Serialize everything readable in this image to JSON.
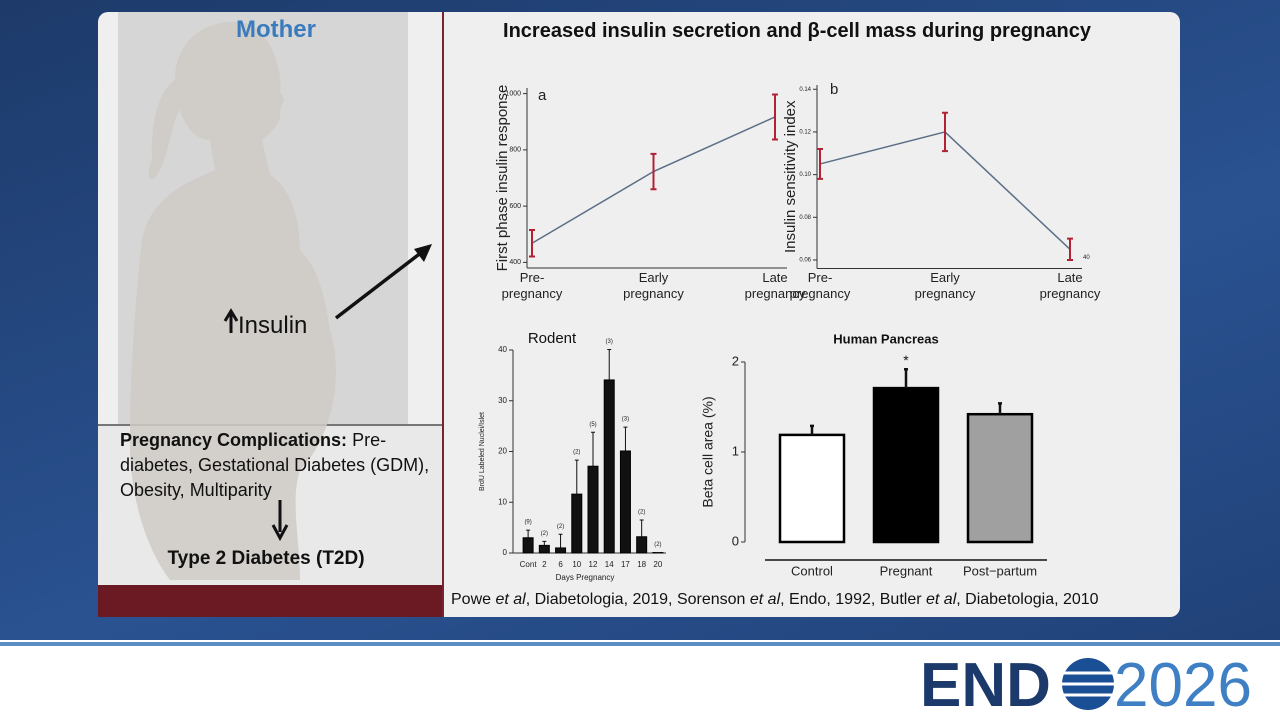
{
  "header": {
    "left_title": "Mother",
    "title": "Increased insulin secretion and β-cell mass during pregnancy"
  },
  "left_panel": {
    "insulin_label": "Insulin",
    "complications_heading": "Pregnancy Complications:",
    "complications_text": "Pre-diabetes, Gestational Diabetes (GDM), Obesity, Multiparity",
    "outcome": "Type 2 Diabetes (T2D)"
  },
  "citation": [
    "Powe ",
    "et al",
    ", Diabetologia, 2019, Sorenson ",
    "et al",
    ", Endo, 1992, Butler ",
    "et al",
    ", Diabetologia, 2010"
  ],
  "logo": {
    "mark": "END",
    "year": "2026"
  },
  "chart_data": [
    {
      "type": "line",
      "label": "a",
      "y_label": "First phase insulin response",
      "categories": [
        "Pre-\npregnancy",
        "Early\npregnancy",
        "Late\npregnancy"
      ],
      "series": [
        {
          "color": "#5a6f86",
          "error_color": "#b22234",
          "values": [
            468,
            723,
            917
          ],
          "errors": [
            47,
            63,
            80
          ]
        }
      ],
      "ylim": [
        380,
        1020
      ],
      "yticks": [
        400,
        600,
        800,
        1000
      ]
    },
    {
      "type": "line",
      "label": "b",
      "y_label": "Insulin sensitivity index",
      "categories": [
        "Pre-\npregnancy",
        "Early\npregnancy",
        "Late\npregnancy"
      ],
      "series": [
        {
          "color": "#5a6f86",
          "error_color": "#b22234",
          "values": [
            0.105,
            0.12,
            0.065
          ],
          "errors": [
            0.007,
            0.009,
            0.005
          ]
        }
      ],
      "ylim": [
        0.056,
        0.142
      ],
      "yticks": [
        0.06,
        0.08,
        {
          "value": 0.1,
          "label": "0.10"
        },
        0.12,
        0.14
      ],
      "annotations": [
        "40"
      ]
    },
    {
      "type": "bar",
      "title": "Rodent",
      "y_label": "BrdU Labeled Nuclei/Islet",
      "x_label": "Days Pregnancy",
      "categories": [
        "Cont",
        "2",
        "6",
        "10",
        "12",
        "14",
        "17",
        "18",
        "20"
      ],
      "values": [
        3,
        1.5,
        1,
        11.6,
        17.1,
        34.1,
        20.1,
        3.2,
        0.1
      ],
      "errors": [
        1.5,
        0.8,
        2.7,
        6.7,
        6.7,
        6,
        4.7,
        3.3,
        0
      ],
      "n_labels": [
        "(9)",
        "(2)",
        "(2)",
        "(2)",
        "(5)",
        "(3)",
        "(3)",
        "(2)",
        "(2)"
      ],
      "color": "#111111",
      "ylim": [
        0,
        40
      ],
      "yticks": [
        0,
        10,
        20,
        30,
        40
      ]
    },
    {
      "type": "bar",
      "title": "Human Pancreas",
      "y_label": "Beta cell area (%)",
      "categories": [
        "Control",
        "Pregnant",
        "Post−partum"
      ],
      "values": [
        1.19,
        1.71,
        1.42
      ],
      "errors": [
        0.1,
        0.21,
        0.12
      ],
      "colors": [
        "#ffffff",
        "#000000",
        "#a0a0a0"
      ],
      "annotations": [
        "*"
      ],
      "ylim": [
        0,
        2
      ],
      "yticks": [
        0,
        1,
        2
      ]
    }
  ]
}
